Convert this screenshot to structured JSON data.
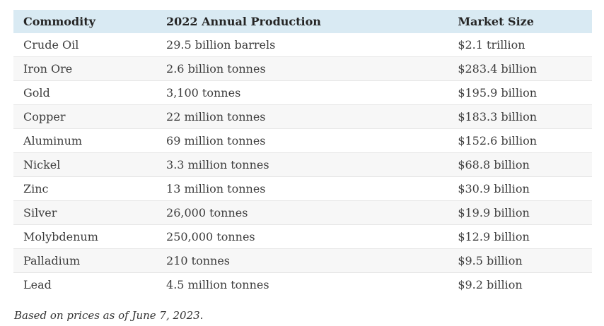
{
  "chart_data": {
    "type": "table",
    "title": "",
    "columns": [
      "Commodity",
      "2022 Annual Production",
      "Market Size"
    ],
    "rows": [
      {
        "commodity": "Crude Oil",
        "production": "29.5 billion barrels",
        "market_size": "$2.1 trillion"
      },
      {
        "commodity": "Iron Ore",
        "production": "2.6 billion tonnes",
        "market_size": "$283.4 billion"
      },
      {
        "commodity": "Gold",
        "production": "3,100 tonnes",
        "market_size": "$195.9 billion"
      },
      {
        "commodity": "Copper",
        "production": "22 million tonnes",
        "market_size": "$183.3 billion"
      },
      {
        "commodity": "Aluminum",
        "production": "69 million tonnes",
        "market_size": "$152.6 billion"
      },
      {
        "commodity": "Nickel",
        "production": "3.3 million tonnes",
        "market_size": "$68.8 billion"
      },
      {
        "commodity": "Zinc",
        "production": "13 million tonnes",
        "market_size": "$30.9 billion"
      },
      {
        "commodity": "Silver",
        "production": "26,000 tonnes",
        "market_size": "$19.9 billion"
      },
      {
        "commodity": "Molybdenum",
        "production": "250,000 tonnes",
        "market_size": "$12.9 billion"
      },
      {
        "commodity": "Palladium",
        "production": "210 tonnes",
        "market_size": "$9.5 billion"
      },
      {
        "commodity": "Lead",
        "production": "4.5 million tonnes",
        "market_size": "$9.2 billion"
      }
    ]
  },
  "footnote": "Based on prices as of June 7, 2023.",
  "colors": {
    "header_bg": "#d9eaf3",
    "stripe_bg": "#f7f7f7",
    "border": "#e3e3e3",
    "text": "#3d3d3d",
    "header_text": "#252525"
  }
}
